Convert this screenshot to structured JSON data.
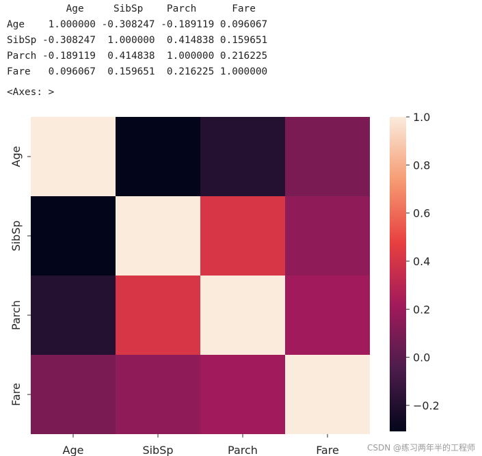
{
  "output": {
    "lines": [
      "          Age     SibSp    Parch      Fare",
      "Age    1.000000 -0.308247 -0.189119 0.096067",
      "SibSp -0.308247  1.000000  0.414838 0.159651",
      "Parch -0.189119  0.414838  1.000000 0.216225",
      "Fare   0.096067  0.159651  0.216225 1.000000"
    ],
    "axes_repr": "<Axes: >"
  },
  "chart_data": {
    "type": "heatmap",
    "title": "",
    "xlabel": "",
    "ylabel": "",
    "x_labels": [
      "Age",
      "SibSp",
      "Parch",
      "Fare"
    ],
    "y_labels": [
      "Age",
      "SibSp",
      "Parch",
      "Fare"
    ],
    "values": [
      [
        1.0,
        -0.308247,
        -0.189119,
        0.096067
      ],
      [
        -0.308247,
        1.0,
        0.414838,
        0.159651
      ],
      [
        -0.189119,
        0.414838,
        1.0,
        0.216225
      ],
      [
        0.096067,
        0.159651,
        0.216225,
        1.0
      ]
    ],
    "colorbar": {
      "range": [
        -0.308247,
        1.0
      ],
      "ticks": [
        -0.2,
        0.0,
        0.2,
        0.4,
        0.6,
        0.8,
        1.0
      ],
      "tick_labels": [
        "−0.2",
        "0.0",
        "0.2",
        "0.4",
        "0.6",
        "0.8",
        "1.0"
      ],
      "colormap": "rocket",
      "stops": [
        "#03051a",
        "#4c1d4b",
        "#a11a5b",
        "#e83f3f",
        "#f69c73",
        "#faebdd"
      ]
    }
  },
  "watermark": "CSDN @练习两年半的工程师"
}
